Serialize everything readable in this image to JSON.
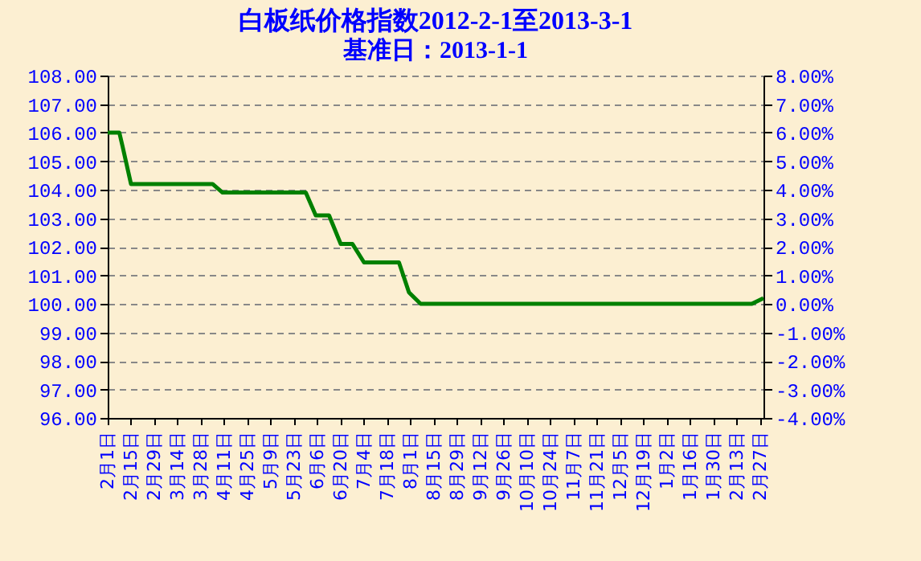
{
  "chart_data": {
    "type": "line",
    "title": "白板纸价格指数2012-2-1至2013-3-1",
    "subtitle": "基准日：2013-1-1",
    "x": [
      "2012-02-01",
      "2012-02-08",
      "2012-02-10",
      "2012-02-15",
      "2012-04-04",
      "2012-04-10",
      "2012-05-30",
      "2012-06-05",
      "2012-06-13",
      "2012-06-20",
      "2012-06-27",
      "2012-07-04",
      "2012-07-25",
      "2012-07-31",
      "2012-08-07",
      "2013-02-22",
      "2013-03-01"
    ],
    "series": [
      {
        "color": "#008000",
        "values": [
          106.0,
          106.0,
          105.5,
          104.2,
          104.2,
          103.9,
          103.9,
          103.1,
          103.1,
          102.1,
          102.1,
          101.45,
          101.45,
          100.4,
          100.0,
          100.0,
          100.2
        ]
      }
    ],
    "xlim": [
      "2012-02-01",
      "2013-03-01"
    ],
    "xticks": [
      {
        "value": "2012-02-01",
        "label": "2月1日"
      },
      {
        "value": "2012-02-15",
        "label": "2月15日"
      },
      {
        "value": "2012-02-29",
        "label": "2月29日"
      },
      {
        "value": "2012-03-14",
        "label": "3月14日"
      },
      {
        "value": "2012-03-28",
        "label": "3月28日"
      },
      {
        "value": "2012-04-11",
        "label": "4月11日"
      },
      {
        "value": "2012-04-25",
        "label": "4月25日"
      },
      {
        "value": "2012-05-09",
        "label": "5月9日"
      },
      {
        "value": "2012-05-23",
        "label": "5月23日"
      },
      {
        "value": "2012-06-06",
        "label": "6月6日"
      },
      {
        "value": "2012-06-20",
        "label": "6月20日"
      },
      {
        "value": "2012-07-04",
        "label": "7月4日"
      },
      {
        "value": "2012-07-18",
        "label": "7月18日"
      },
      {
        "value": "2012-08-01",
        "label": "8月1日"
      },
      {
        "value": "2012-08-15",
        "label": "8月15日"
      },
      {
        "value": "2012-08-29",
        "label": "8月29日"
      },
      {
        "value": "2012-09-12",
        "label": "9月12日"
      },
      {
        "value": "2012-09-26",
        "label": "9月26日"
      },
      {
        "value": "2012-10-10",
        "label": "10月10日"
      },
      {
        "value": "2012-10-24",
        "label": "10月24日"
      },
      {
        "value": "2012-11-07",
        "label": "11月7日"
      },
      {
        "value": "2012-11-21",
        "label": "11月21日"
      },
      {
        "value": "2012-12-05",
        "label": "12月5日"
      },
      {
        "value": "2012-12-19",
        "label": "12月19日"
      },
      {
        "value": "2013-01-02",
        "label": "1月2日"
      },
      {
        "value": "2013-01-16",
        "label": "1月16日"
      },
      {
        "value": "2013-01-30",
        "label": "1月30日"
      },
      {
        "value": "2013-02-13",
        "label": "2月13日"
      },
      {
        "value": "2013-02-27",
        "label": "2月27日"
      }
    ],
    "ylim": [
      96,
      108
    ],
    "yticks": [
      {
        "value": 96,
        "label": "96.00"
      },
      {
        "value": 97,
        "label": "97.00"
      },
      {
        "value": 98,
        "label": "98.00"
      },
      {
        "value": 99,
        "label": "99.00"
      },
      {
        "value": 100,
        "label": "100.00"
      },
      {
        "value": 101,
        "label": "101.00"
      },
      {
        "value": 102,
        "label": "102.00"
      },
      {
        "value": 103,
        "label": "103.00"
      },
      {
        "value": 104,
        "label": "104.00"
      },
      {
        "value": 105,
        "label": "105.00"
      },
      {
        "value": 106,
        "label": "106.00"
      },
      {
        "value": 107,
        "label": "107.00"
      },
      {
        "value": 108,
        "label": "108.00"
      }
    ],
    "y2lim": [
      -4,
      8
    ],
    "y2ticks": [
      {
        "value": -4,
        "label": "-4.00%"
      },
      {
        "value": -3,
        "label": "-3.00%"
      },
      {
        "value": -2,
        "label": "-2.00%"
      },
      {
        "value": -1,
        "label": "-1.00%"
      },
      {
        "value": 0,
        "label": "0.00%"
      },
      {
        "value": 1,
        "label": "1.00%"
      },
      {
        "value": 2,
        "label": "2.00%"
      },
      {
        "value": 3,
        "label": "3.00%"
      },
      {
        "value": 4,
        "label": "4.00%"
      },
      {
        "value": 5,
        "label": "5.00%"
      },
      {
        "value": 6,
        "label": "6.00%"
      },
      {
        "value": 7,
        "label": "7.00%"
      },
      {
        "value": 8,
        "label": "8.00%"
      }
    ],
    "grid": "y",
    "marker": "none",
    "line_style": "solid"
  }
}
